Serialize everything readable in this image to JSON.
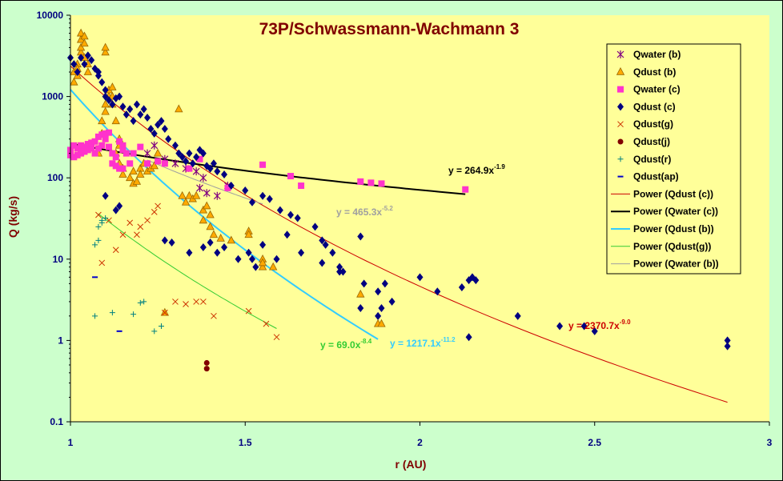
{
  "chart_data": {
    "type": "scatter",
    "title": "73P/Schwassmann-Wachmann 3",
    "xlabel": "r (AU)",
    "ylabel": "Q (kg/s)",
    "xlim": [
      1,
      3
    ],
    "ylim": [
      0.1,
      10000
    ],
    "yscale": "log",
    "grid": false,
    "legend_position": "right",
    "colors": {
      "plot_bg": "#ffff99",
      "outer_bg": "#ccffcc",
      "axis_text": "#000080",
      "label_text": "#800000"
    },
    "xticks": [
      "1",
      "1.5",
      "2",
      "2.5",
      "3"
    ],
    "yticks": [
      "0.1",
      "1",
      "10",
      "100",
      "1000",
      "10000"
    ],
    "series": [
      {
        "name": "Qwater (b)",
        "marker": "asterisk",
        "color": "#800080",
        "x": [
          1.22,
          1.24,
          1.27,
          1.3,
          1.33,
          1.36,
          1.37,
          1.38,
          1.39,
          1.42,
          1.45
        ],
        "y": [
          200,
          250,
          170,
          150,
          130,
          120,
          75,
          100,
          65,
          60,
          80
        ]
      },
      {
        "name": "Qdust (b)",
        "marker": "triangle",
        "color": "#ffaa00",
        "x": [
          1.01,
          1.01,
          1.02,
          1.02,
          1.02,
          1.03,
          1.03,
          1.03,
          1.03,
          1.04,
          1.04,
          1.04,
          1.05,
          1.05,
          1.08,
          1.09,
          1.09,
          1.1,
          1.1,
          1.1,
          1.1,
          1.11,
          1.11,
          1.12,
          1.12,
          1.12,
          1.13,
          1.13,
          1.14,
          1.14,
          1.14,
          1.15,
          1.15,
          1.17,
          1.18,
          1.18,
          1.19,
          1.2,
          1.2,
          1.21,
          1.22,
          1.23,
          1.24,
          1.25,
          1.27,
          1.31,
          1.32,
          1.33,
          1.34,
          1.35,
          1.36,
          1.38,
          1.38,
          1.39,
          1.4,
          1.4,
          1.41,
          1.43,
          1.46,
          1.51,
          1.51,
          1.55,
          1.55,
          1.55,
          1.58,
          1.83,
          1.88,
          1.89
        ],
        "y": [
          1500,
          2000,
          2500,
          1800,
          2200,
          3500,
          4000,
          5000,
          6000,
          4500,
          5500,
          3000,
          2000,
          2500,
          200,
          350,
          500,
          650,
          800,
          3500,
          4000,
          1000,
          1200,
          1300,
          1000,
          800,
          200,
          500,
          150,
          250,
          300,
          110,
          130,
          100,
          85,
          120,
          90,
          130,
          110,
          150,
          120,
          130,
          140,
          200,
          2.2,
          700,
          60,
          50,
          60,
          55,
          60,
          40,
          30,
          45,
          35,
          25,
          20,
          18,
          17,
          22,
          20,
          8,
          10,
          9,
          8,
          3.7,
          1.6,
          1.6
        ]
      },
      {
        "name": "Qwater (c)",
        "marker": "square",
        "color": "#ff33cc",
        "x": [
          1.0,
          1.0,
          1.0,
          1.01,
          1.01,
          1.02,
          1.02,
          1.03,
          1.03,
          1.03,
          1.04,
          1.04,
          1.05,
          1.05,
          1.06,
          1.06,
          1.07,
          1.07,
          1.08,
          1.08,
          1.09,
          1.09,
          1.1,
          1.1,
          1.11,
          1.11,
          1.12,
          1.12,
          1.13,
          1.13,
          1.14,
          1.14,
          1.15,
          1.15,
          1.15,
          1.16,
          1.17,
          1.18,
          1.2,
          1.22,
          1.25,
          1.27,
          1.34,
          1.37,
          1.45,
          1.55,
          1.63,
          1.66,
          1.83,
          1.86,
          1.89,
          2.13
        ],
        "y": [
          220,
          190,
          210,
          180,
          250,
          230,
          190,
          220,
          200,
          250,
          210,
          240,
          220,
          260,
          230,
          270,
          200,
          280,
          230,
          320,
          250,
          340,
          300,
          350,
          240,
          360,
          200,
          150,
          180,
          140,
          280,
          130,
          250,
          220,
          130,
          200,
          150,
          200,
          240,
          150,
          160,
          150,
          130,
          170,
          75,
          145,
          105,
          80,
          90,
          87,
          85,
          72
        ]
      },
      {
        "name": "Qdust (c)",
        "marker": "diamond",
        "color": "#000080",
        "x": [
          1.0,
          1.01,
          1.02,
          1.03,
          1.04,
          1.05,
          1.06,
          1.07,
          1.08,
          1.08,
          1.09,
          1.1,
          1.1,
          1.11,
          1.12,
          1.13,
          1.14,
          1.15,
          1.16,
          1.17,
          1.18,
          1.19,
          1.2,
          1.21,
          1.22,
          1.23,
          1.24,
          1.25,
          1.26,
          1.27,
          1.28,
          1.3,
          1.31,
          1.32,
          1.33,
          1.34,
          1.35,
          1.36,
          1.37,
          1.38,
          1.39,
          1.4,
          1.41,
          1.42,
          1.44,
          1.46,
          1.5,
          1.52,
          1.55,
          1.57,
          1.6,
          1.63,
          1.65,
          1.7,
          1.72,
          1.75,
          1.77,
          1.78,
          1.83,
          1.84,
          1.88,
          1.9,
          1.92,
          2.0,
          2.05,
          2.12,
          2.14,
          2.15,
          2.16,
          2.28,
          2.4,
          2.47,
          2.5,
          2.88,
          2.88,
          1.1,
          1.13,
          1.14,
          1.27,
          1.29,
          1.34,
          1.38,
          1.4,
          1.42,
          1.44,
          1.48,
          1.51,
          1.52,
          1.53,
          1.55,
          1.59,
          1.62,
          1.66,
          1.72,
          1.73,
          1.77,
          1.83,
          1.88,
          1.89,
          2.14
        ],
        "y": [
          3000,
          2500,
          2000,
          3000,
          2500,
          3200,
          2800,
          2200,
          1800,
          2000,
          1500,
          1200,
          1000,
          900,
          800,
          950,
          1000,
          750,
          600,
          700,
          500,
          800,
          600,
          700,
          550,
          400,
          350,
          450,
          500,
          400,
          300,
          250,
          200,
          180,
          160,
          200,
          150,
          180,
          220,
          200,
          140,
          130,
          150,
          120,
          110,
          80,
          70,
          50,
          60,
          55,
          40,
          35,
          32,
          25,
          17,
          12,
          8,
          7,
          19,
          5,
          4,
          5,
          3,
          6,
          4,
          4.5,
          5.5,
          6,
          5.5,
          2,
          1.5,
          1.5,
          1.3,
          1.0,
          0.85,
          60,
          40,
          45,
          17,
          16,
          12,
          14,
          16,
          12,
          14,
          10,
          12,
          10,
          8,
          15,
          10,
          20,
          12,
          9,
          15,
          7,
          2.5,
          2.0,
          2.5,
          1.1
        ]
      },
      {
        "name": "Qdust(g)",
        "marker": "x",
        "color": "#cc3300",
        "x": [
          1.08,
          1.09,
          1.11,
          1.13,
          1.15,
          1.17,
          1.19,
          1.2,
          1.22,
          1.24,
          1.25,
          1.27,
          1.3,
          1.33,
          1.36,
          1.38,
          1.41,
          1.51,
          1.56,
          1.59
        ],
        "y": [
          35,
          9,
          30,
          13,
          20,
          28,
          20,
          25,
          30,
          38,
          45,
          2.2,
          3,
          2.8,
          3.0,
          3.0,
          2.0,
          2.3,
          1.6,
          1.1
        ]
      },
      {
        "name": "Qdust(j)",
        "marker": "circle",
        "color": "#800000",
        "x": [
          1.39,
          1.39
        ],
        "y": [
          0.53,
          0.45
        ]
      },
      {
        "name": "Qdust(r)",
        "marker": "plus",
        "color": "#008080",
        "x": [
          1.07,
          1.07,
          1.08,
          1.08,
          1.09,
          1.09,
          1.1,
          1.12,
          1.18,
          1.2,
          1.21,
          1.24,
          1.26
        ],
        "y": [
          2.0,
          15,
          17,
          25,
          28,
          30,
          32,
          2.2,
          2.1,
          2.9,
          3.0,
          1.3,
          1.5
        ]
      },
      {
        "name": "Qdust(ap)",
        "marker": "dash",
        "color": "#0000cc",
        "x": [
          1.07,
          1.14
        ],
        "y": [
          6.0,
          1.3
        ]
      }
    ],
    "trendlines": [
      {
        "name": "Power (Qdust (c))",
        "color": "#cc0000",
        "a": 2370.7,
        "b": -9.0,
        "xrange": [
          1.0,
          2.88
        ],
        "eq_base": "y = 2370.7x",
        "eq_exp": "-9.0"
      },
      {
        "name": "Power (Qwater (c))",
        "color": "#000000",
        "a": 264.9,
        "b": -1.9,
        "xrange": [
          1.0,
          2.13
        ],
        "eq_base": "y = 264.9x",
        "eq_exp": "-1.9"
      },
      {
        "name": "Power (Qdust (b))",
        "color": "#33ccff",
        "a": 1217.1,
        "b": -11.2,
        "xrange": [
          1.0,
          1.88
        ],
        "eq_base": "y = 1217.1x",
        "eq_exp": "-11.2"
      },
      {
        "name": "Power (Qdust(g))",
        "color": "#33cc33",
        "a": 69.0,
        "b": -8.4,
        "xrange": [
          1.08,
          1.59
        ],
        "eq_base": "y = 69.0x",
        "eq_exp": "-8.4"
      },
      {
        "name": "Power (Qwater (b))",
        "color": "#a0a0a0",
        "a": 465.3,
        "b": -5.2,
        "xrange": [
          1.22,
          1.55
        ],
        "eq_base": "y = 465.3x",
        "eq_exp": "-5.2"
      }
    ]
  }
}
